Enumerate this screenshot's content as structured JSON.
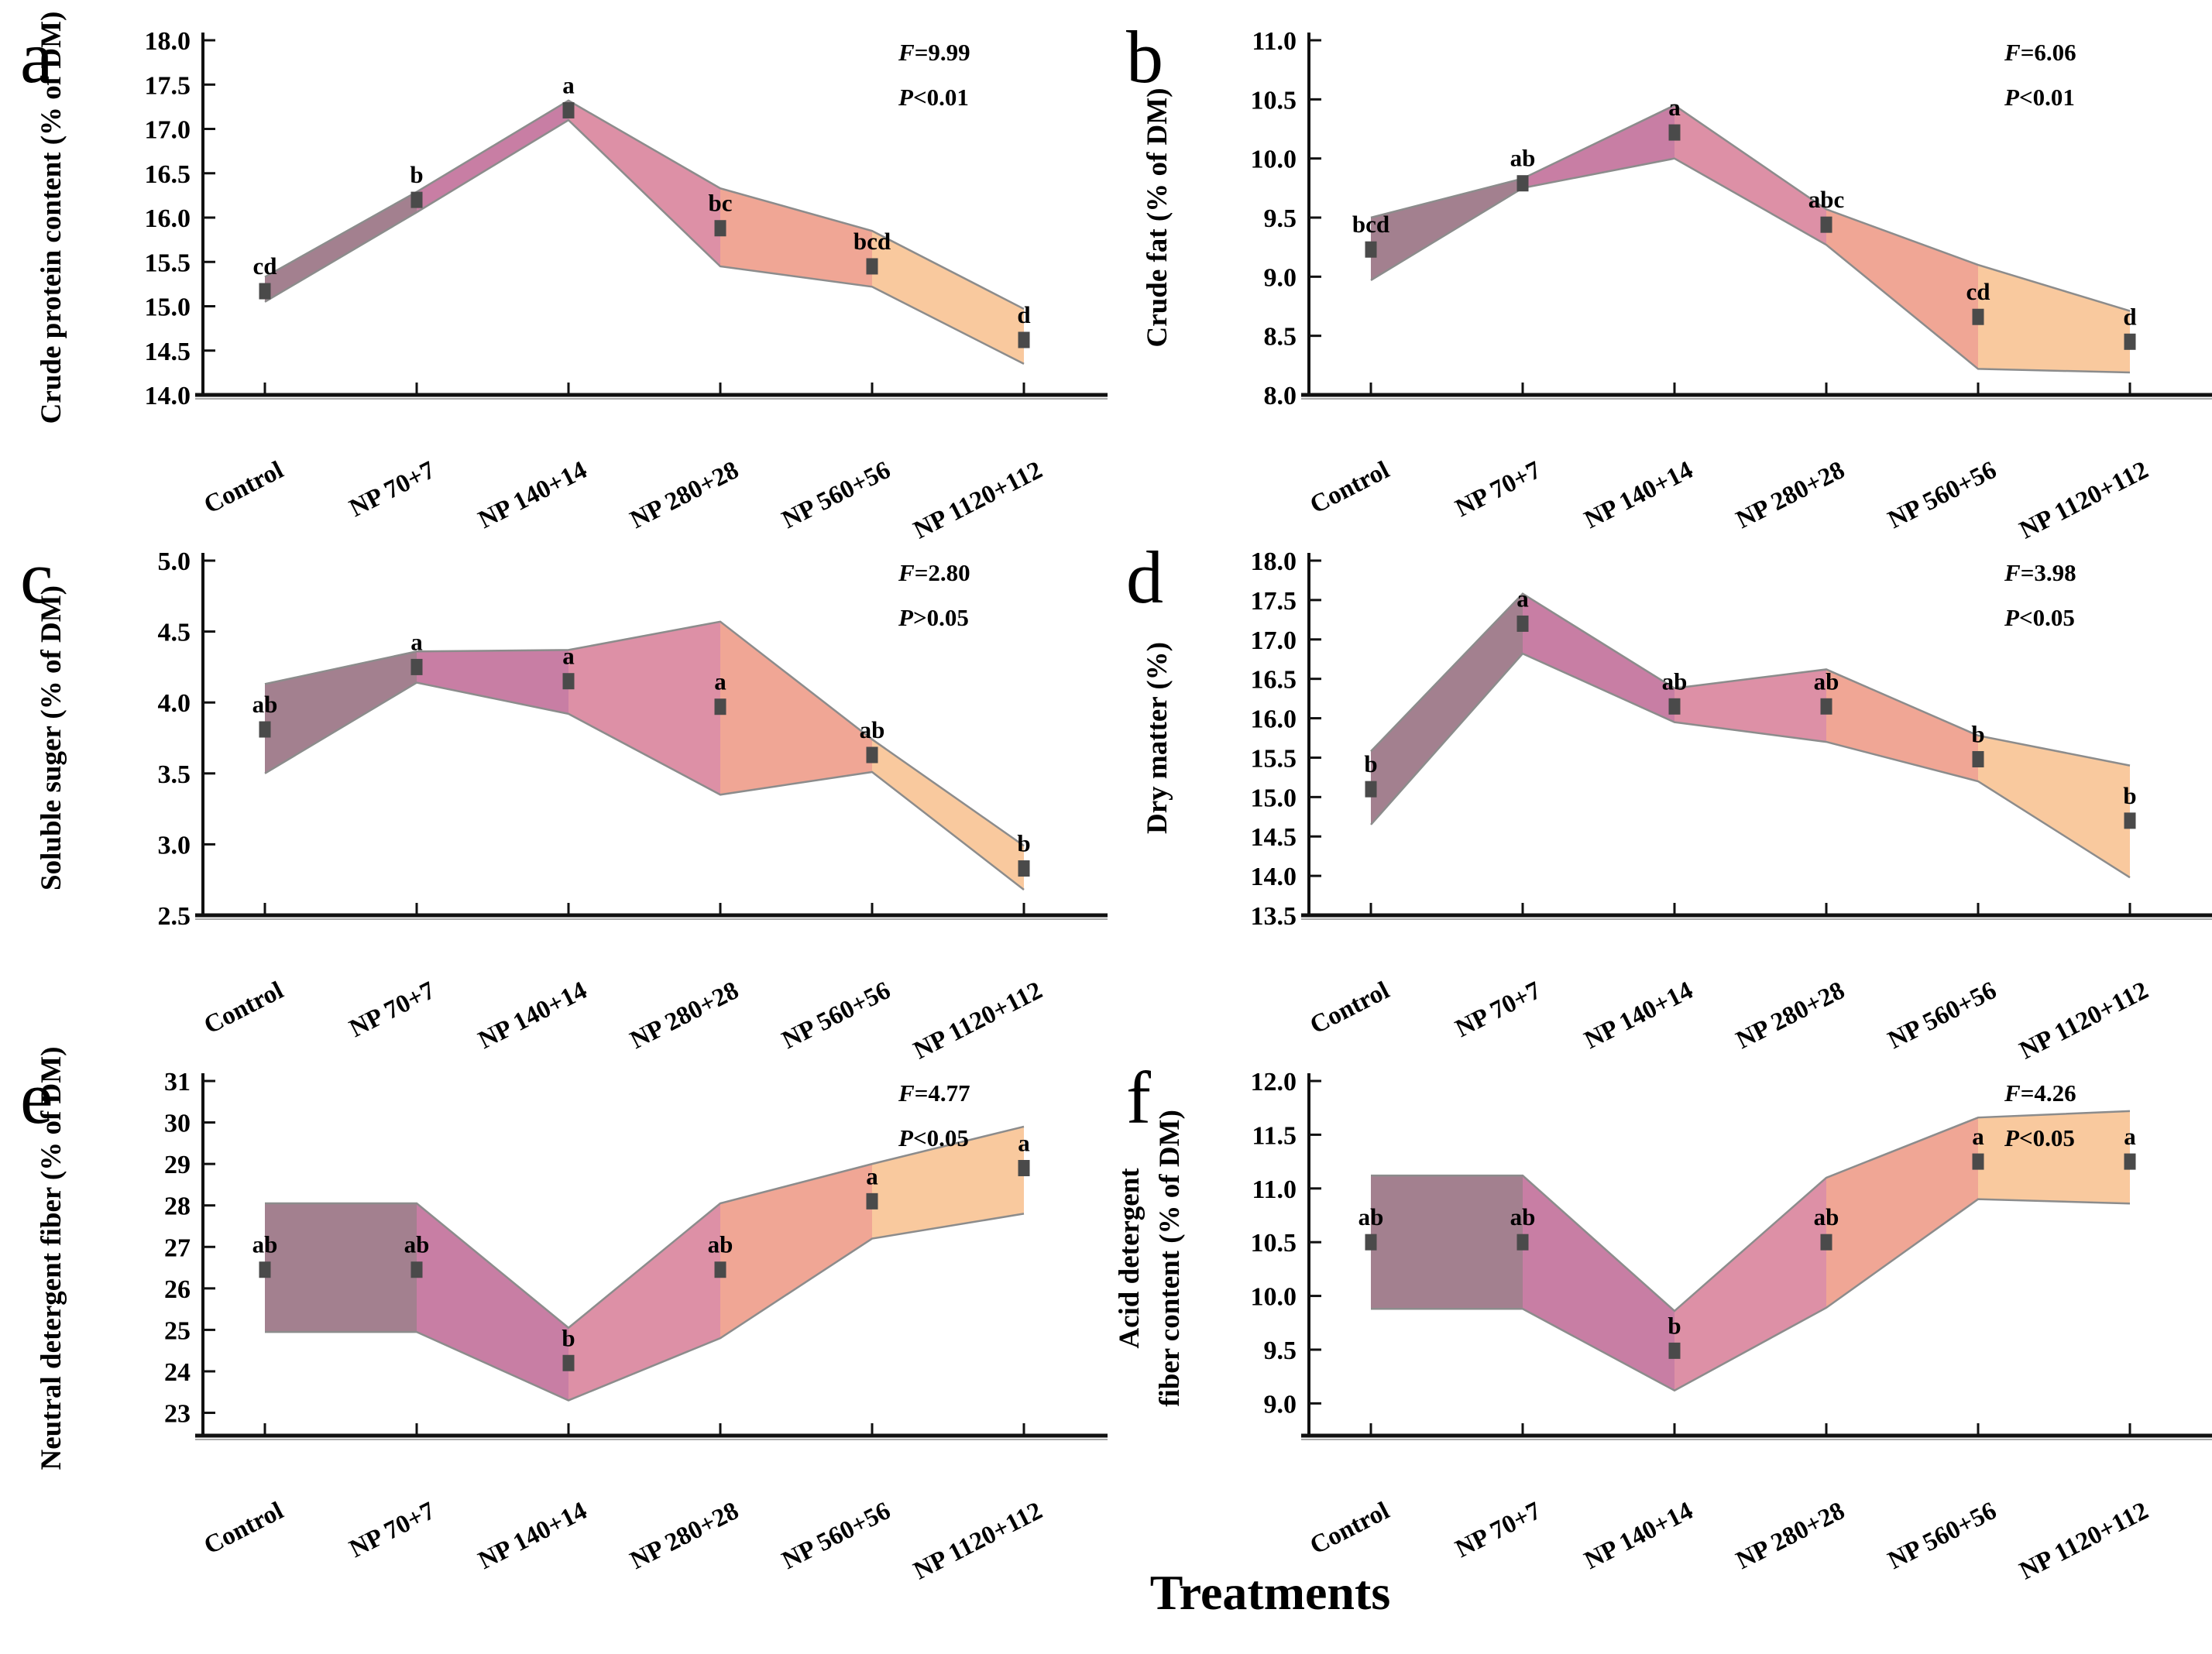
{
  "figure": {
    "axis_title": "Treatments",
    "categories": [
      "Control",
      "NP 70+7",
      "NP 140+14",
      "NP 280+28",
      "NP 560+56",
      "NP 1120+112"
    ],
    "colors": {
      "band_segments": [
        "#a3808f",
        "#c87ea4",
        "#dd90a6",
        "#f0a695",
        "#f9c99e"
      ],
      "band_edge": "#8c8c8c",
      "marker": "#4a4a4a",
      "axis": "#111111",
      "axis_shadow": "#aaaaaa",
      "text": "#000000"
    }
  },
  "chart_data": [
    {
      "type": "area",
      "panel_letter": "a",
      "ylabel_lines": [
        "Crude protein content (% of DM)"
      ],
      "f_stat": "F=9.99",
      "p_stat": "P<0.01",
      "axis_min": 14.0,
      "axis_max": 18.0,
      "ytick_values": [
        14.0,
        14.5,
        15.0,
        15.5,
        16.0,
        16.5,
        17.0,
        17.5,
        18.0
      ],
      "ytick_labels": [
        "14.0",
        "14.5",
        "15.0",
        "15.5",
        "16.0",
        "16.5",
        "17.0",
        "17.5",
        "18.0"
      ],
      "means": [
        15.17,
        16.2,
        17.21,
        15.88,
        15.45,
        14.62
      ],
      "band_low": [
        15.05,
        16.06,
        17.1,
        15.45,
        15.22,
        14.35
      ],
      "band_high": [
        15.33,
        16.29,
        17.32,
        16.33,
        15.85,
        14.97
      ],
      "sig_letters": [
        "cd",
        "b",
        "a",
        "bc",
        "bcd",
        "d"
      ]
    },
    {
      "type": "area",
      "panel_letter": "b",
      "ylabel_lines": [
        "Crude fat (% of DM)"
      ],
      "f_stat": "F=6.06",
      "p_stat": "P<0.01",
      "axis_min": 8.0,
      "axis_max": 11.0,
      "ytick_values": [
        8.0,
        8.5,
        9.0,
        9.5,
        10.0,
        10.5,
        11.0
      ],
      "ytick_labels": [
        "8.0",
        "8.5",
        "9.0",
        "9.5",
        "10.0",
        "10.5",
        "11.0"
      ],
      "means": [
        9.23,
        9.79,
        10.22,
        9.44,
        8.66,
        8.45
      ],
      "band_low": [
        8.97,
        9.75,
        10.0,
        9.27,
        8.22,
        8.19
      ],
      "band_high": [
        9.5,
        9.83,
        10.45,
        9.57,
        9.1,
        8.71
      ],
      "sig_letters": [
        "bcd",
        "ab",
        "a",
        "abc",
        "cd",
        "d"
      ]
    },
    {
      "type": "area",
      "panel_letter": "c",
      "ylabel_lines": [
        "Soluble suger (% of DM)"
      ],
      "f_stat": "F=2.80",
      "p_stat": "P>0.05",
      "axis_min": 2.5,
      "axis_max": 5.0,
      "ytick_values": [
        2.5,
        3.0,
        3.5,
        4.0,
        4.5,
        5.0
      ],
      "ytick_labels": [
        "2.5",
        "3.0",
        "3.5",
        "4.0",
        "4.5",
        "5.0"
      ],
      "means": [
        3.81,
        4.25,
        4.15,
        3.97,
        3.63,
        2.83
      ],
      "band_low": [
        3.5,
        4.14,
        3.92,
        3.35,
        3.51,
        2.68
      ],
      "band_high": [
        4.13,
        4.36,
        4.37,
        4.57,
        3.74,
        2.99
      ],
      "sig_letters": [
        "ab",
        "a",
        "a",
        "a",
        "ab",
        "b"
      ]
    },
    {
      "type": "area",
      "panel_letter": "d",
      "ylabel_lines": [
        "Dry matter (%)"
      ],
      "f_stat": "F=3.98",
      "p_stat": "P<0.05",
      "axis_min": 13.5,
      "axis_max": 18.0,
      "ytick_values": [
        13.5,
        14.0,
        14.5,
        15.0,
        15.5,
        16.0,
        16.5,
        17.0,
        17.5,
        18.0
      ],
      "ytick_labels": [
        "13.5",
        "14.0",
        "14.5",
        "15.0",
        "15.5",
        "16.0",
        "16.5",
        "17.0",
        "17.5",
        "18.0"
      ],
      "means": [
        15.1,
        17.2,
        16.15,
        16.15,
        15.48,
        14.7
      ],
      "band_low": [
        14.65,
        16.82,
        15.95,
        15.7,
        15.2,
        13.98
      ],
      "band_high": [
        15.58,
        17.58,
        16.38,
        16.62,
        15.78,
        15.4
      ],
      "sig_letters": [
        "b",
        "a",
        "ab",
        "ab",
        "b",
        "b"
      ]
    },
    {
      "type": "area",
      "panel_letter": "e",
      "ylabel_lines": [
        "Neutral detergent fiber (% of DM)"
      ],
      "f_stat": "F=4.77",
      "p_stat": "P<0.05",
      "axis_min": 22.45,
      "axis_max": 31.0,
      "ytick_values": [
        23,
        24,
        25,
        26,
        27,
        28,
        29,
        30,
        31
      ],
      "ytick_labels": [
        "23",
        "24",
        "25",
        "26",
        "27",
        "28",
        "29",
        "30",
        "31"
      ],
      "means": [
        26.45,
        26.45,
        24.2,
        26.45,
        28.1,
        28.9
      ],
      "band_low": [
        24.95,
        24.95,
        23.3,
        24.8,
        27.2,
        27.8
      ],
      "band_high": [
        28.05,
        28.05,
        25.05,
        28.05,
        29.0,
        29.9
      ],
      "sig_letters": [
        "ab",
        "ab",
        "b",
        "ab",
        "a",
        "a"
      ]
    },
    {
      "type": "area",
      "panel_letter": "f",
      "ylabel_lines": [
        "Acid detergent",
        "fiber content (% of DM)"
      ],
      "f_stat": "F=4.26",
      "p_stat": "P<0.05",
      "axis_min": 8.7,
      "axis_max": 12.0,
      "ytick_values": [
        9.0,
        9.5,
        10.0,
        10.5,
        11.0,
        11.5,
        12.0
      ],
      "ytick_labels": [
        "9.0",
        "9.5",
        "10.0",
        "10.5",
        "11.0",
        "11.5",
        "12.0"
      ],
      "means": [
        10.5,
        10.5,
        9.49,
        10.5,
        11.25,
        11.25
      ],
      "band_low": [
        9.88,
        9.88,
        9.12,
        9.89,
        10.9,
        10.86
      ],
      "band_high": [
        11.12,
        11.12,
        9.86,
        11.1,
        11.66,
        11.72
      ],
      "sig_letters": [
        "ab",
        "ab",
        "b",
        "ab",
        "a",
        "a"
      ]
    }
  ]
}
